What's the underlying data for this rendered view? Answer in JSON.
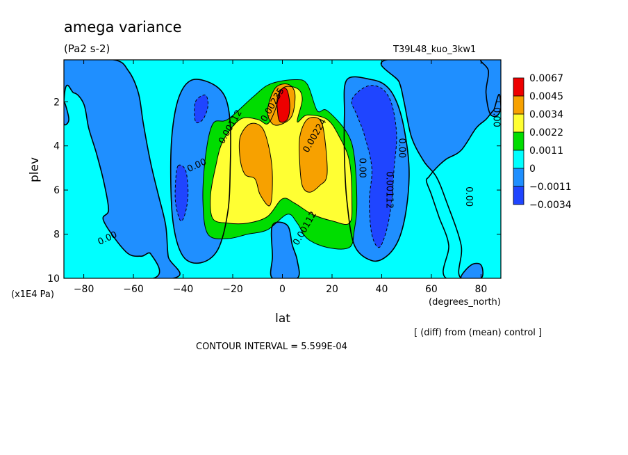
{
  "figure": {
    "title": "amega variance",
    "units": "(Pa2 s-2)",
    "run_label": "T39L48_kuo_3kw1",
    "y_unit_note": "(x1E4 Pa)",
    "x_unit_note": "(degrees_north)",
    "diff_note": "[ (diff) from (mean) control ]",
    "contour_interval": "CONTOUR INTERVAL = 5.599E-04"
  },
  "chart_data": {
    "type": "contour",
    "title": "amega variance",
    "xlabel": "lat",
    "ylabel": "plev",
    "xlim": [
      -88,
      88
    ],
    "ylim": [
      10,
      0.1
    ],
    "y_reversed": true,
    "x_ticks": [
      -80,
      -60,
      -40,
      -20,
      0,
      20,
      40,
      60,
      80
    ],
    "y_ticks": [
      2,
      4,
      6,
      8,
      10
    ],
    "colorbar": {
      "levels": [
        "0.0067",
        "0.0045",
        "0.0034",
        "0.0022",
        "0.0011",
        "0",
        "−0.0011",
        "−0.0034"
      ],
      "colors": [
        "#ee0000",
        "#f7a100",
        "#ffff33",
        "#00dd00",
        "#00ffff",
        "#1f8fff",
        "#1f45ff"
      ]
    },
    "contour_labels": [
      {
        "text": "0.00",
        "lat": -70,
        "plev": 8.3
      },
      {
        "text": "0.00",
        "lat": -34,
        "plev": 5.0
      },
      {
        "text": "0.00112",
        "lat": -20,
        "plev": 3.2
      },
      {
        "text": "0.00235",
        "lat": -3,
        "plev": 2.2
      },
      {
        "text": "0.00224",
        "lat": 14,
        "plev": 3.6
      },
      {
        "text": "0.00112",
        "lat": 10,
        "plev": 7.8
      },
      {
        "text": "0.00",
        "lat": 31,
        "plev": 5.0
      },
      {
        "text": "0.00112",
        "lat": 42,
        "plev": 6.0
      },
      {
        "text": "0.00",
        "lat": 47,
        "plev": 4.1
      },
      {
        "text": "0.00",
        "lat": 74,
        "plev": 6.3
      },
      {
        "text": "0.00",
        "lat": 85,
        "plev": 2.7
      }
    ],
    "fields": [
      {
        "level": "base",
        "color": "#00ffff",
        "shape": "plot-background"
      },
      {
        "level": "neg1",
        "color": "#1f8fff",
        "shape": "west-band",
        "outline": [
          [
            -88,
            0.1
          ],
          [
            -68,
            0.1
          ],
          [
            -62,
            0.6
          ],
          [
            -58,
            1.6
          ],
          [
            -56,
            3.0
          ],
          [
            -53,
            4.8
          ],
          [
            -50,
            6.2
          ],
          [
            -47,
            7.6
          ],
          [
            -46,
            9.0
          ],
          [
            -44,
            10
          ],
          [
            -88,
            10
          ]
        ]
      },
      {
        "level": "base",
        "color": "#00ffff",
        "shape": "west-cyan-inlet",
        "outline": [
          [
            -88,
            2.0
          ],
          [
            -84,
            1.6
          ],
          [
            -80,
            2.1
          ],
          [
            -78,
            3.2
          ],
          [
            -75,
            4.3
          ],
          [
            -72,
            5.6
          ],
          [
            -70,
            6.9
          ],
          [
            -72,
            7.4
          ],
          [
            -63,
            8.8
          ],
          [
            -57,
            9.0
          ],
          [
            -53,
            8.9
          ],
          [
            -52,
            10
          ],
          [
            -88,
            10
          ]
        ]
      },
      {
        "level": "neg1",
        "color": "#1f8fff",
        "shape": "west-cyan-inlet-edge",
        "outline": [
          [
            -88,
            2.0
          ],
          [
            -88,
            3.0
          ],
          [
            -86,
            2.8
          ]
        ]
      },
      {
        "level": "neg1",
        "color": "#1f8fff",
        "shape": "east-band",
        "outline": [
          [
            42,
            0.1
          ],
          [
            88,
            0.1
          ],
          [
            88,
            10
          ],
          [
            72,
            10
          ],
          [
            72,
            8.5
          ],
          [
            66,
            6.5
          ],
          [
            62,
            5.4
          ],
          [
            57,
            4.7
          ],
          [
            52,
            3.6
          ],
          [
            49,
            2.0
          ],
          [
            47,
            1.1
          ]
        ]
      },
      {
        "level": "base",
        "color": "#00ffff",
        "shape": "east-cyan-inlet",
        "outline": [
          [
            66,
            10
          ],
          [
            67,
            8.5
          ],
          [
            63,
            7.2
          ],
          [
            60,
            6.2
          ],
          [
            58,
            5.6
          ],
          [
            59,
            5.4
          ],
          [
            62,
            5.0
          ],
          [
            66,
            4.6
          ],
          [
            72,
            4.2
          ],
          [
            78,
            3.2
          ],
          [
            82,
            2.8
          ],
          [
            85,
            2.4
          ],
          [
            88,
            2.2
          ],
          [
            88,
            10
          ]
        ]
      },
      {
        "level": "neg1",
        "color": "#1f8fff",
        "shape": "top-right-corner",
        "outline": [
          [
            80,
            0.1
          ],
          [
            88,
            0.1
          ],
          [
            88,
            2.3
          ],
          [
            84,
            2.6
          ],
          [
            82,
            1.6
          ],
          [
            83,
            0.6
          ]
        ]
      },
      {
        "level": "neg1",
        "color": "#1f8fff",
        "shape": "east-bottom-strip",
        "outline": [
          [
            72,
            10
          ],
          [
            80,
            10
          ],
          [
            80,
            9.4
          ],
          [
            76,
            9.4
          ]
        ]
      },
      {
        "level": "neg1",
        "color": "#1f8fff",
        "shape": "west-trough",
        "outline": [
          [
            -36,
            1.0
          ],
          [
            -28,
            1.2
          ],
          [
            -23,
            1.8
          ],
          [
            -21,
            3.0
          ],
          [
            -21,
            5.0
          ],
          [
            -22,
            7.0
          ],
          [
            -26,
            8.7
          ],
          [
            -33,
            9.3
          ],
          [
            -40,
            9.0
          ],
          [
            -44,
            7.5
          ],
          [
            -45,
            5.0
          ],
          [
            -44,
            3.0
          ],
          [
            -41,
            1.6
          ]
        ]
      },
      {
        "level": "neg1",
        "color": "#1f8fff",
        "shape": "east-trough",
        "outline": [
          [
            26,
            1.0
          ],
          [
            36,
            1.0
          ],
          [
            42,
            1.3
          ],
          [
            46,
            2.0
          ],
          [
            49,
            3.2
          ],
          [
            51,
            5.0
          ],
          [
            50,
            6.8
          ],
          [
            47,
            8.2
          ],
          [
            42,
            9.0
          ],
          [
            36,
            9.2
          ],
          [
            29,
            8.5
          ],
          [
            26,
            6.5
          ],
          [
            25,
            4.5
          ],
          [
            25,
            2.6
          ]
        ]
      },
      {
        "level": "neg1",
        "color": "#1f8fff",
        "shape": "central-dip",
        "outline": [
          [
            -4,
            7.6
          ],
          [
            2,
            7.6
          ],
          [
            4,
            8.5
          ],
          [
            6,
            9.2
          ],
          [
            6,
            10
          ],
          [
            -4,
            10
          ],
          [
            -4,
            9.0
          ]
        ]
      },
      {
        "level": "neg2",
        "color": "#1f45ff",
        "shape": "west-small-pool",
        "outline": [
          [
            -42,
            4.9
          ],
          [
            -39,
            5.1
          ],
          [
            -38,
            6.1
          ],
          [
            -39,
            7.0
          ],
          [
            -41,
            7.4
          ],
          [
            -43,
            6.6
          ],
          [
            -43,
            5.6
          ]
        ]
      },
      {
        "level": "neg2",
        "color": "#1f45ff",
        "shape": "west-tiny-pool",
        "outline": [
          [
            -35,
            2.0
          ],
          [
            -31,
            1.7
          ],
          [
            -30,
            2.2
          ],
          [
            -32,
            2.8
          ],
          [
            -35,
            2.9
          ]
        ]
      },
      {
        "level": "neg2",
        "color": "#1f45ff",
        "shape": "east-pool",
        "outline": [
          [
            28,
            1.9
          ],
          [
            34,
            1.3
          ],
          [
            40,
            1.4
          ],
          [
            44,
            2.1
          ],
          [
            46,
            3.5
          ],
          [
            45,
            5.0
          ],
          [
            44,
            6.5
          ],
          [
            42,
            7.8
          ],
          [
            39,
            8.6
          ],
          [
            36,
            8.0
          ],
          [
            35,
            6.5
          ],
          [
            36,
            5.0
          ],
          [
            33,
            3.5
          ],
          [
            30,
            2.6
          ]
        ]
      },
      {
        "level": "pos1",
        "color": "#00dd00",
        "shape": "green-core",
        "outline": [
          [
            -28,
            3.0
          ],
          [
            -22,
            2.8
          ],
          [
            -12,
            1.8
          ],
          [
            -5,
            1.2
          ],
          [
            5,
            1.0
          ],
          [
            10,
            1.2
          ],
          [
            14,
            2.4
          ],
          [
            18,
            2.4
          ],
          [
            26,
            3.4
          ],
          [
            29,
            4.5
          ],
          [
            30,
            6.6
          ],
          [
            29,
            7.8
          ],
          [
            27,
            8.6
          ],
          [
            18,
            8.6
          ],
          [
            10,
            8.2
          ],
          [
            6,
            7.5
          ],
          [
            2,
            7.1
          ],
          [
            -6,
            7.8
          ],
          [
            -14,
            8.0
          ],
          [
            -22,
            8.2
          ],
          [
            -30,
            8.0
          ],
          [
            -32,
            6.5
          ],
          [
            -31,
            4.5
          ]
        ]
      },
      {
        "level": "pos2",
        "color": "#ffff33",
        "shape": "yellow-core",
        "outline": [
          [
            -24,
            3.8
          ],
          [
            -17,
            2.8
          ],
          [
            -10,
            2.8
          ],
          [
            -6,
            3.0
          ],
          [
            -3,
            2.4
          ],
          [
            0,
            1.4
          ],
          [
            6,
            1.4
          ],
          [
            8,
            1.9
          ],
          [
            6,
            2.9
          ],
          [
            10,
            2.6
          ],
          [
            18,
            2.8
          ],
          [
            23,
            3.6
          ],
          [
            27,
            4.7
          ],
          [
            28,
            6.5
          ],
          [
            27,
            7.5
          ],
          [
            20,
            7.4
          ],
          [
            12,
            7.1
          ],
          [
            5,
            6.6
          ],
          [
            0,
            6.4
          ],
          [
            -6,
            7.2
          ],
          [
            -14,
            7.5
          ],
          [
            -22,
            7.5
          ],
          [
            -28,
            7.3
          ],
          [
            -29,
            6.3
          ],
          [
            -27,
            5.0
          ]
        ]
      },
      {
        "level": "pos3",
        "color": "#f7a100",
        "shape": "west-lobe",
        "outline": [
          [
            -17,
            3.6
          ],
          [
            -13,
            3.0
          ],
          [
            -8,
            3.2
          ],
          [
            -5,
            4.3
          ],
          [
            -4,
            5.5
          ],
          [
            -5,
            6.7
          ],
          [
            -9,
            6.2
          ],
          [
            -11,
            5.5
          ],
          [
            -15,
            5.3
          ],
          [
            -17,
            4.6
          ]
        ]
      },
      {
        "level": "pos3",
        "color": "#f7a100",
        "shape": "east-lobe",
        "outline": [
          [
            7,
            3.6
          ],
          [
            10,
            2.8
          ],
          [
            15,
            2.8
          ],
          [
            17,
            3.6
          ],
          [
            18,
            5.3
          ],
          [
            15,
            5.8
          ],
          [
            11,
            6.1
          ],
          [
            8,
            5.8
          ],
          [
            7,
            4.8
          ]
        ]
      },
      {
        "level": "pos3",
        "color": "#f7a100",
        "shape": "top-lobe",
        "outline": [
          [
            -6,
            2.4
          ],
          [
            -3,
            1.4
          ],
          [
            2,
            1.2
          ],
          [
            5,
            1.6
          ],
          [
            4,
            2.6
          ],
          [
            0,
            3.0
          ],
          [
            -4,
            3.0
          ]
        ]
      },
      {
        "level": "pos4",
        "color": "#ee0000",
        "shape": "peak",
        "outline": [
          [
            -2,
            1.8
          ],
          [
            0,
            1.4
          ],
          [
            2,
            1.5
          ],
          [
            3,
            2.2
          ],
          [
            2,
            2.8
          ],
          [
            -1,
            2.9
          ],
          [
            -2,
            2.4
          ]
        ]
      }
    ]
  }
}
